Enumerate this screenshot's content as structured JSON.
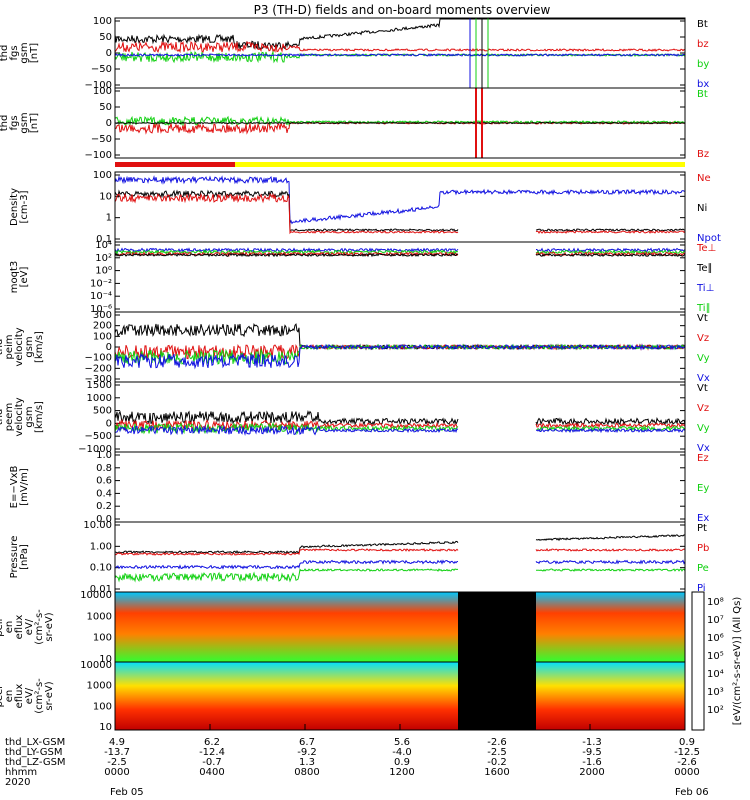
{
  "title": "P3 (TH-D) fields and on-board moments overview",
  "colors": {
    "black": "#000000",
    "red": "#e01010",
    "green": "#10d010",
    "blue": "#1010e0",
    "yellow": "#ffff00"
  },
  "chart_data": {
    "type": "line",
    "x_ticks": [
      "0000",
      "0400",
      "0800",
      "1200",
      "1600",
      "2000",
      "0000"
    ],
    "panels": [
      {
        "id": "fgs",
        "ylabel": [
          "thd",
          "fgs",
          "gsm",
          "[nT]"
        ],
        "yticks": [
          "100",
          "50",
          "0",
          "−50",
          "−100"
        ],
        "legend": [
          {
            "name": "Bt",
            "color": "black"
          },
          {
            "name": "bz",
            "color": "red"
          },
          {
            "name": "by",
            "color": "green"
          },
          {
            "name": "bx",
            "color": "blue"
          }
        ]
      },
      {
        "id": "fgs_b",
        "ylabel": [
          "thd",
          "fgs",
          "gsm",
          "[nT]"
        ],
        "yticks": [
          "100",
          "50",
          "0",
          "−50",
          "−100"
        ],
        "legend": [
          {
            "name": "Bt",
            "color": "green"
          },
          {
            "name": "Bz",
            "color": "red"
          }
        ]
      },
      {
        "id": "density",
        "ylabel": [
          "Density",
          "[cm-3]"
        ],
        "yticks": [
          "100",
          "10",
          "1",
          "0.1"
        ],
        "legend": [
          {
            "name": "Ne",
            "color": "red"
          },
          {
            "name": "Ni",
            "color": "black"
          },
          {
            "name": "Npot",
            "color": "blue"
          }
        ]
      },
      {
        "id": "temp",
        "ylabel": [
          "moqt3",
          "[eV]"
        ],
        "yticks": [
          "10⁴",
          "10²",
          "10⁰",
          "10⁻²",
          "10⁻⁴",
          "10⁻⁶"
        ],
        "legend": [
          {
            "name": "Te⊥",
            "color": "red"
          },
          {
            "name": "Te∥",
            "color": "black"
          },
          {
            "name": "Ti⊥",
            "color": "blue"
          },
          {
            "name": "Ti∥",
            "color": "green"
          }
        ]
      },
      {
        "id": "vi",
        "ylabel": [
          "thd",
          "peim",
          "velocity",
          "gsm",
          "[km/s]"
        ],
        "yticks": [
          "300",
          "200",
          "100",
          "0",
          "−100",
          "−200",
          "−300"
        ],
        "legend": [
          {
            "name": "Vt",
            "color": "black"
          },
          {
            "name": "Vz",
            "color": "red"
          },
          {
            "name": "Vy",
            "color": "green"
          },
          {
            "name": "Vx",
            "color": "blue"
          }
        ]
      },
      {
        "id": "ve",
        "ylabel": [
          "thd",
          "peem",
          "velocity",
          "gsm",
          "[km/s]"
        ],
        "yticks": [
          "1500",
          "1000",
          "500",
          "0",
          "−500",
          "−1000"
        ],
        "legend": [
          {
            "name": "Vt",
            "color": "black"
          },
          {
            "name": "Vz",
            "color": "red"
          },
          {
            "name": "Vy",
            "color": "green"
          },
          {
            "name": "Vx",
            "color": "blue"
          }
        ]
      },
      {
        "id": "efield",
        "ylabel": [
          "E=−VxB",
          "[mV/m]"
        ],
        "yticks": [
          "1.0",
          "0.8",
          "0.6",
          "0.4",
          "0.2",
          "0.0"
        ],
        "legend": [
          {
            "name": "Ez",
            "color": "red"
          },
          {
            "name": "Ey",
            "color": "green"
          },
          {
            "name": "Ex",
            "color": "blue"
          }
        ]
      },
      {
        "id": "pressure",
        "ylabel": [
          "Pressure",
          "[nPa]"
        ],
        "yticks": [
          "10.00",
          "1.00",
          "0.10",
          "0.01"
        ],
        "legend": [
          {
            "name": "Pt",
            "color": "black"
          },
          {
            "name": "Pb",
            "color": "red"
          },
          {
            "name": "Pe",
            "color": "green"
          },
          {
            "name": "Pi",
            "color": "blue"
          }
        ]
      },
      {
        "id": "peir",
        "ylabel": [
          "thd",
          "peir",
          "en",
          "eflux",
          "eV/",
          "(cm²-s-",
          "sr-eV)"
        ],
        "yticks": [
          "10000",
          "1000",
          "100",
          "10"
        ]
      },
      {
        "id": "peer",
        "ylabel": [
          "thd",
          "peer",
          "en",
          "eflux",
          "eV/",
          "(cm²-s-",
          "sr-eV)"
        ],
        "yticks": [
          "10000",
          "1000",
          "100",
          "10"
        ]
      }
    ],
    "colorbar": {
      "ticks": [
        "10⁸",
        "10⁷",
        "10⁶",
        "10⁵",
        "10⁴",
        "10³",
        "10²"
      ],
      "label": "[eV/(cm²-s-sr-eV)] (All Qs)"
    },
    "ephemeris": {
      "labels": [
        "thd_LX-GSM",
        "thd_LY-GSM",
        "thd_LZ-GSM",
        "hhmm",
        "2020"
      ],
      "rows": [
        [
          "4.9",
          "6.2",
          "6.7",
          "5.6",
          "-2.6",
          "-1.3",
          "0.9"
        ],
        [
          "-13.7",
          "-12.4",
          "-9.2",
          "-4.0",
          "-2.5",
          "-9.5",
          "-12.5"
        ],
        [
          "-2.5",
          "-0.7",
          "1.3",
          "0.9",
          "-0.2",
          "-1.6",
          "-2.6"
        ],
        [
          "0000",
          "0400",
          "0800",
          "1200",
          "1600",
          "2000",
          "0000"
        ]
      ],
      "dates": [
        "Feb 05",
        "Feb 06"
      ]
    }
  }
}
